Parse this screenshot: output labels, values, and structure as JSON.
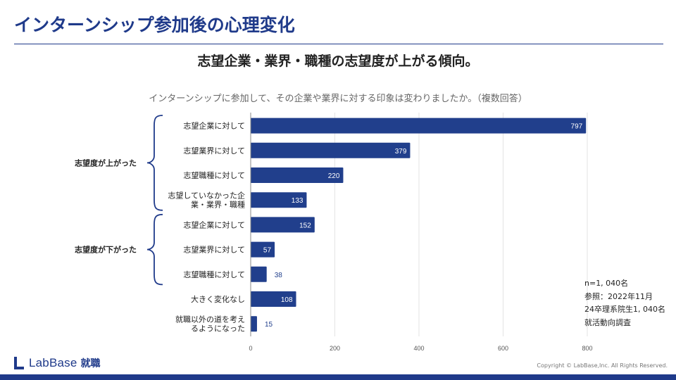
{
  "page": {
    "title": "インターンシップ参加後の心理変化",
    "subtitle": "志望企業・業界・職種の志望度が上がる傾向。",
    "question": "インターンシップに参加して、その企業や業界に対する印象は変わりましたか。（複数回答）",
    "notes": [
      "n=1, 040名",
      "参照：2022年11月",
      "24卒理系院生1, 040名",
      "就活動向調査"
    ],
    "logo": {
      "name": "LabBase",
      "sub": "就職"
    },
    "copyright": "Copyright ©  LabBase,Inc. All Rights Reserved."
  },
  "colors": {
    "accent": "#1f3a8a",
    "bar": "#213f8c",
    "grid": "#e3e3e3"
  },
  "chart_data": {
    "type": "bar",
    "orientation": "horizontal",
    "title": "インターンシップに参加して、その企業や業界に対する印象は変わりましたか。（複数回答）",
    "xlim": [
      0,
      800
    ],
    "xticks": [
      0,
      200,
      400,
      600,
      800
    ],
    "categories": [
      [
        "志望企業に対して"
      ],
      [
        "志望業界に対して"
      ],
      [
        "志望職種に対して"
      ],
      [
        "志望していなかった企",
        "業・業界・職種"
      ],
      [
        "志望企業に対して"
      ],
      [
        "志望業界に対して"
      ],
      [
        "志望職種に対して"
      ],
      [
        "大きく変化なし"
      ],
      [
        "就職以外の道を考え",
        "るようになった"
      ]
    ],
    "values": [
      797,
      379,
      220,
      133,
      152,
      57,
      38,
      108,
      15
    ],
    "groups": [
      {
        "label": "志望度が上がった",
        "from": 0,
        "to": 3
      },
      {
        "label": "志望度が下がった",
        "from": 4,
        "to": 6
      }
    ]
  }
}
